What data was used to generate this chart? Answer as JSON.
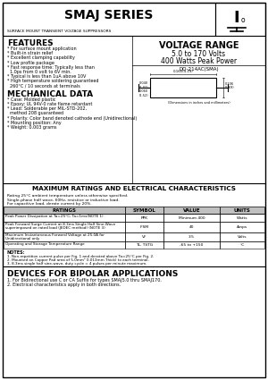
{
  "title": "SMAJ SERIES",
  "subtitle": "SURFACE MOUNT TRANSIENT VOLTAGE SUPPRESSORS",
  "voltage_range_title": "VOLTAGE RANGE",
  "voltage_range": "5.0 to 170 Volts",
  "power": "400 Watts Peak Power",
  "features_title": "FEATURES",
  "features": [
    "* For surface mount application",
    "* Built-in strain relief",
    "* Excellent clamping capability",
    "* Low profile package",
    "* Fast response time: Typically less than",
    "  1.0ps from 0 volt to 6V min.",
    "* Typical is less than 1uA above 10V",
    "* High temperature soldering guaranteed",
    "  260°C / 10 seconds at terminals"
  ],
  "mech_title": "MECHANICAL DATA",
  "mech_data": [
    "* Case: Molded plastic",
    "* Epoxy: UL 94V-0 rate flame retardant",
    "* Lead: Solderable per MIL-STD-202,",
    "  method 208 guaranteed",
    "* Polarity: Color band denoted cathode end (Unidirectional)",
    "* Mounting position: Any",
    "* Weight: 0.003 grams"
  ],
  "ratings_title": "MAXIMUM RATINGS AND ELECTRICAL CHARACTERISTICS",
  "ratings_note1": "Rating 25°C ambient temperature unless otherwise specified.",
  "ratings_note2": "Single-phase half wave, 60Hz, resistive or inductive load.",
  "ratings_note3": "For capacitive load, derate current by 20%.",
  "table_headers": [
    "RATINGS",
    "SYMBOL",
    "VALUE",
    "UNITS"
  ],
  "table_row1": [
    "Peak Power Dissipation at Ta=25°C, Ta=1ms(NOTE 1)",
    "PPK",
    "Minimum 400",
    "Watts"
  ],
  "table_row2a": "Peak Forward Surge Current at 8.3ms Single Half Sine-Wave",
  "table_row2b": "superimposed on rated load (JEDEC method) (NOTE 3)",
  "table_row2": [
    "",
    "IFSM",
    "40",
    "Amps"
  ],
  "table_row3a": "Maximum Instantaneous Forward Voltage at 25.0A for",
  "table_row3b": "Unidirectional only",
  "table_row3": [
    "",
    "VF",
    "3.5",
    "Volts"
  ],
  "table_row4": [
    "Operating and Storage Temperature Range",
    "TL, TSTG",
    "-65 to +150",
    "°C"
  ],
  "notes_title": "NOTES:",
  "note1": "1. Non-repetition current pulse per Fig. 1 and derated above Ta=25°C per Fig. 2.",
  "note2": "2. Mounted on Copper Pad area of 5.0mm² 0.013mm Thick) to each terminal.",
  "note3": "3. 8.3ms single half sine-wave, duty cycle = 4 pulses per minute maximum.",
  "bipolar_title": "DEVICES FOR BIPOLAR APPLICATIONS",
  "bipolar1": "1. For Bidirectional use C or CA Suffix for types SMAJ5.0 thru SMAJ170.",
  "bipolar2": "2. Electrical characteristics apply in both directions.",
  "diagram_label": "DO-214AC(SMA)",
  "dim_label": "(Dimensions in inches and millimeters)",
  "bg_color": "#ffffff"
}
